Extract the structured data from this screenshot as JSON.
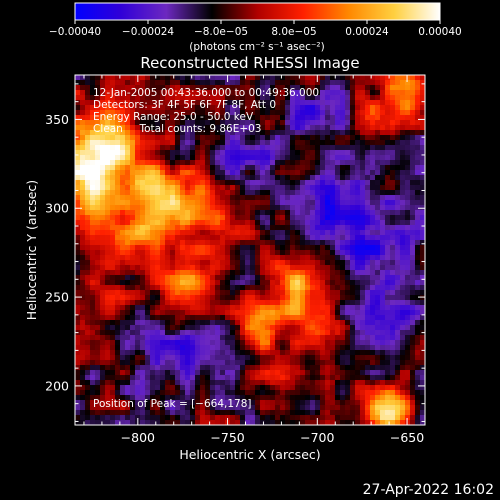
{
  "chart_data": {
    "type": "heatmap",
    "title": "Reconstructed RHESSI Image",
    "xlabel": "Heliocentric X (arcsec)",
    "ylabel": "Heliocentric Y (arcsec)",
    "xlim": [
      -835,
      -640
    ],
    "ylim": [
      178,
      375
    ],
    "x_ticks": [
      -800,
      -750,
      -700,
      -650
    ],
    "x_tick_labels": [
      "−800",
      "−750",
      "−700",
      "−650"
    ],
    "y_ticks": [
      200,
      250,
      300,
      350
    ],
    "y_tick_labels": [
      "200",
      "250",
      "300",
      "350"
    ],
    "colorbar": {
      "range": [
        -0.0004,
        0.0004
      ],
      "ticks": [
        -0.0004,
        -0.00024,
        -8e-05,
        8e-05,
        0.00024,
        0.0004
      ],
      "tick_labels": [
        "−0.00040",
        "−0.00024",
        "−8.0e−05",
        "8.0e−05",
        "0.00024",
        "0.00040"
      ],
      "units_label": "(photons cm⁻² s⁻¹ asec⁻²)",
      "colors": [
        "#0000ff",
        "#3000d8",
        "#6c28c0",
        "#000000",
        "#b00000",
        "#ff2000",
        "#ff8800",
        "#ffd040",
        "#ffffff"
      ]
    },
    "annotations": [
      "12-Jan-2005 00:43:36.000 to 00:49:36.000",
      "Detectors: 3F 4F 5F 6F 7F 8F, Att 0",
      "Energy Range: 25.0 - 50.0 keV",
      "Clean     Total counts: 9.86E+03"
    ],
    "peak_label": "Position of Peak = [−664,178]",
    "peak_position": [
      -664,
      178
    ],
    "blobs": [
      {
        "x": -827,
        "y": 318,
        "amp": 0.00042,
        "sx": 16,
        "sy": 26
      },
      {
        "x": -812,
        "y": 336,
        "amp": 0.00028,
        "sx": 12,
        "sy": 10
      },
      {
        "x": -792,
        "y": 288,
        "amp": 0.00026,
        "sx": 12,
        "sy": 13
      },
      {
        "x": -775,
        "y": 302,
        "amp": 0.0003,
        "sx": 11,
        "sy": 12
      },
      {
        "x": -770,
        "y": 258,
        "amp": 0.00027,
        "sx": 11,
        "sy": 13
      },
      {
        "x": -753,
        "y": 292,
        "amp": 0.0002,
        "sx": 10,
        "sy": 12
      },
      {
        "x": -792,
        "y": 318,
        "amp": 0.00018,
        "sx": 10,
        "sy": 9
      },
      {
        "x": -712,
        "y": 255,
        "amp": 0.00032,
        "sx": 12,
        "sy": 13
      },
      {
        "x": -732,
        "y": 232,
        "amp": 0.00022,
        "sx": 10,
        "sy": 12
      },
      {
        "x": -700,
        "y": 228,
        "amp": 0.00018,
        "sx": 9,
        "sy": 12
      },
      {
        "x": -722,
        "y": 205,
        "amp": 0.0001,
        "sx": 8,
        "sy": 7
      },
      {
        "x": -816,
        "y": 255,
        "amp": 0.00012,
        "sx": 8,
        "sy": 10
      },
      {
        "x": -827,
        "y": 225,
        "amp": 9e-05,
        "sx": 6,
        "sy": 10
      },
      {
        "x": -650,
        "y": 368,
        "amp": 0.00036,
        "sx": 8,
        "sy": 11
      },
      {
        "x": -672,
        "y": 352,
        "amp": 0.00016,
        "sx": 8,
        "sy": 9
      },
      {
        "x": -662,
        "y": 186,
        "amp": 0.00046,
        "sx": 9,
        "sy": 8
      },
      {
        "x": -690,
        "y": 300,
        "amp": -0.0002,
        "sx": 14,
        "sy": 18
      },
      {
        "x": -665,
        "y": 280,
        "amp": -0.00018,
        "sx": 14,
        "sy": 16
      },
      {
        "x": -660,
        "y": 240,
        "amp": -0.00016,
        "sx": 14,
        "sy": 16
      },
      {
        "x": -740,
        "y": 330,
        "amp": -0.00015,
        "sx": 14,
        "sy": 12
      },
      {
        "x": -775,
        "y": 218,
        "amp": -0.00016,
        "sx": 16,
        "sy": 16
      },
      {
        "x": -700,
        "y": 352,
        "amp": -0.00014,
        "sx": 14,
        "sy": 10
      }
    ]
  },
  "footer": {
    "timestamp": "27-Apr-2022 16:02"
  }
}
